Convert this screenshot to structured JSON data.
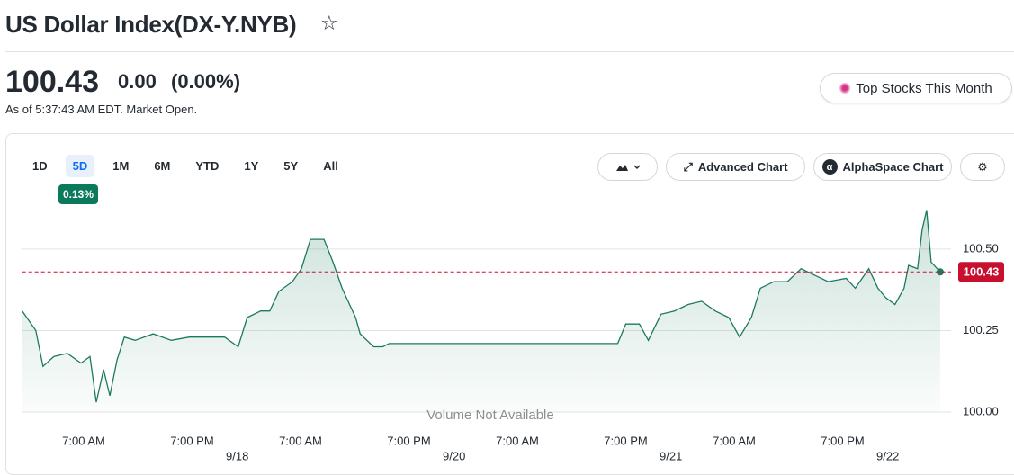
{
  "header": {
    "title": "US Dollar Index(DX-Y.NYB)",
    "price": "100.43",
    "change": "0.00",
    "change_percent": "(0.00%)",
    "as_of": "As of 5:37:43 AM EDT. Market Open.",
    "promo_button": "Top Stocks This Month"
  },
  "toolbar": {
    "ranges": [
      "1D",
      "5D",
      "1M",
      "6M",
      "YTD",
      "1Y",
      "5Y",
      "All"
    ],
    "range_change": "0.13%",
    "advanced_chart": "Advanced Chart",
    "alphaspace_chart": "AlphaSpace Chart"
  },
  "chart_data": {
    "type": "line",
    "x": [
      -6.8,
      -5.3,
      -4.5,
      -3.3,
      -1.8,
      -0.3,
      0.7,
      1.4,
      2.2,
      2.9,
      3.7,
      4.5,
      5.7,
      7.7,
      9.7,
      11.7,
      13.7,
      15.6,
      17.1,
      18.1,
      19.6,
      20.6,
      21.6,
      23.1,
      24.1,
      25.1,
      26.6,
      27.6,
      28.6,
      30.1,
      30.6,
      32.1,
      33.1,
      33.8,
      40.5,
      50.5,
      59.1,
      60.0,
      61.5,
      62.5,
      63.9,
      65.4,
      66.9,
      68.4,
      69.9,
      71.4,
      72.6,
      73.9,
      74.9,
      76.4,
      77.9,
      79.4,
      80.9,
      82.4,
      84.4,
      85.4,
      86.9,
      87.9,
      88.8,
      89.8,
      90.8,
      91.3,
      92.3,
      92.8,
      93.3,
      93.8,
      94.8
    ],
    "series": [
      {
        "color": "#1b7a5e",
        "values": [
          100.31,
          100.25,
          100.14,
          100.17,
          100.18,
          100.15,
          100.17,
          100.03,
          100.13,
          100.05,
          100.16,
          100.23,
          100.22,
          100.24,
          100.22,
          100.23,
          100.23,
          100.23,
          100.2,
          100.29,
          100.31,
          100.31,
          100.37,
          100.4,
          100.44,
          100.53,
          100.53,
          100.46,
          100.38,
          100.29,
          100.24,
          100.2,
          100.2,
          100.21,
          100.21,
          100.21,
          100.21,
          100.27,
          100.27,
          100.22,
          100.3,
          100.31,
          100.33,
          100.34,
          100.31,
          100.29,
          100.23,
          100.29,
          100.38,
          100.4,
          100.4,
          100.44,
          100.42,
          100.4,
          100.41,
          100.38,
          100.44,
          100.38,
          100.35,
          100.33,
          100.38,
          100.45,
          100.44,
          100.56,
          100.62,
          100.46,
          100.43
        ]
      }
    ],
    "xlim": [
      -6.8,
      96
    ],
    "xticks": [
      {
        "value": 0,
        "label": "7:00 AM"
      },
      {
        "value": 12,
        "label": "7:00 PM"
      },
      {
        "value": 24,
        "label": "7:00 AM"
      },
      {
        "value": 36,
        "label": "7:00 PM"
      },
      {
        "value": 48,
        "label": "7:00 AM"
      },
      {
        "value": 60,
        "label": "7:00 PM"
      },
      {
        "value": 72,
        "label": "7:00 AM"
      },
      {
        "value": 84,
        "label": "7:00 PM"
      }
    ],
    "date_ticks": [
      {
        "value": 17,
        "label": "9/18"
      },
      {
        "value": 41,
        "label": "9/20"
      },
      {
        "value": 65,
        "label": "9/21"
      },
      {
        "value": 89,
        "label": "9/22"
      }
    ],
    "ylim": [
      99.88,
      100.66
    ],
    "yticks": [
      {
        "value": 100,
        "label": "100.00"
      },
      100.25,
      {
        "value": 100.5,
        "label": "100.50"
      }
    ],
    "grid": true,
    "reference_line": {
      "value": 100.43,
      "color": "#c8102e"
    },
    "annotation": "Volume Not Available"
  }
}
